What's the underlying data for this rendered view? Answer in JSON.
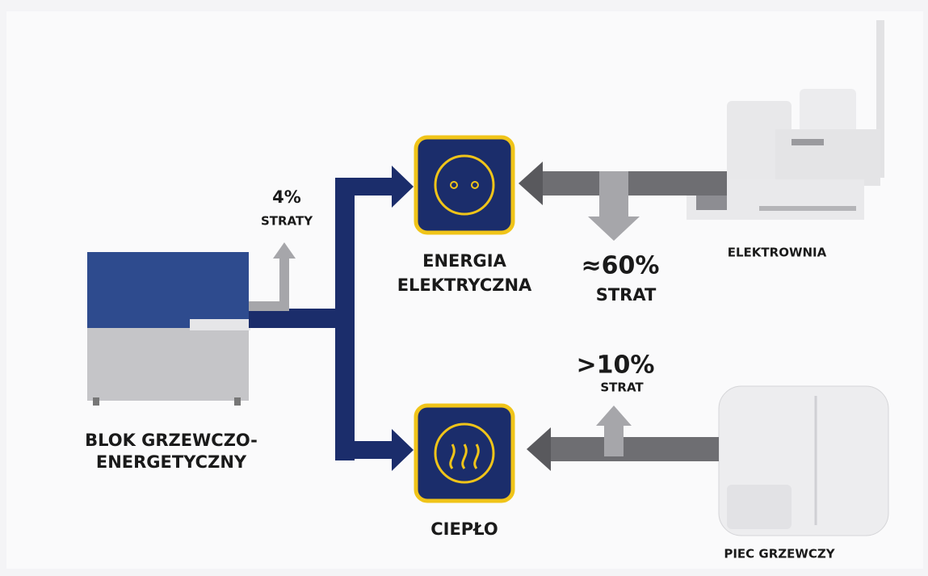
{
  "labels": {
    "chp_unit": [
      "BLOK GRZEWCZO-",
      "ENERGETYCZNY"
    ],
    "chp_loss": {
      "value": "4%",
      "caption": "STRATY"
    },
    "electricity": [
      "ENERGIA",
      "ELEKTRYCZNA"
    ],
    "heat": "CIEPŁO",
    "power_plant": "ELEKTROWNIA",
    "power_plant_loss": {
      "value": "≈60%",
      "caption": "STRAT"
    },
    "furnace": "PIEC GRZEWCZY",
    "furnace_loss": {
      "value": ">10%",
      "caption": "STRAT"
    }
  }
}
